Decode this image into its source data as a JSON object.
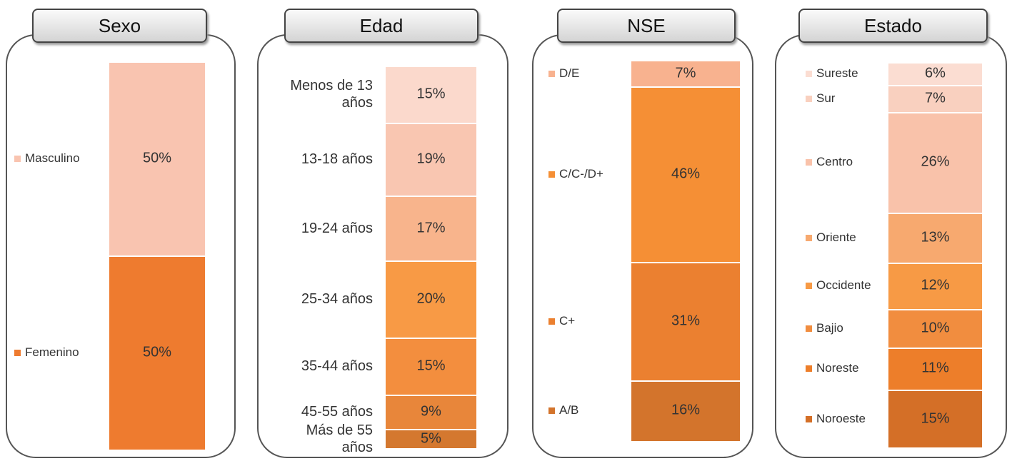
{
  "chart_data": [
    {
      "type": "stacked_bar",
      "title": "Sexo",
      "legend_markers": true,
      "series": [
        {
          "name": "Femenino",
          "color": "#ee7b2f",
          "values": [
            50
          ],
          "value_labels": [
            "50%"
          ]
        },
        {
          "name": "Masculino",
          "color": "#f9c4b0",
          "values": [
            50
          ],
          "value_labels": [
            "50%"
          ]
        }
      ]
    },
    {
      "type": "stacked_bar",
      "title": "Edad",
      "legend_markers": false,
      "series": [
        {
          "name": "Más de 55 años",
          "color": "#d4782f",
          "values": [
            5
          ],
          "value_labels": [
            "5%"
          ]
        },
        {
          "name": "45-55 años",
          "color": "#e8863a",
          "values": [
            9
          ],
          "value_labels": [
            "9%"
          ]
        },
        {
          "name": "35-44 años",
          "color": "#f38e3e",
          "values": [
            15
          ],
          "value_labels": [
            "15%"
          ]
        },
        {
          "name": "25-34 años",
          "color": "#f89a45",
          "values": [
            20
          ],
          "value_labels": [
            "20%"
          ]
        },
        {
          "name": "19-24 años",
          "color": "#f8b48c",
          "values": [
            17
          ],
          "value_labels": [
            "17%"
          ]
        },
        {
          "name": "13-18 años",
          "color": "#f9c6b1",
          "values": [
            19
          ],
          "value_labels": [
            "19%"
          ]
        },
        {
          "name": "Menos de 13 años",
          "color": "#fbd9cc",
          "values": [
            15
          ],
          "value_labels": [
            "15%"
          ]
        }
      ]
    },
    {
      "type": "stacked_bar",
      "title": "NSE",
      "legend_markers": true,
      "series": [
        {
          "name": "A/B",
          "color": "#d3742c",
          "values": [
            16
          ],
          "value_labels": [
            "16%"
          ]
        },
        {
          "name": "C+",
          "color": "#eb8030",
          "values": [
            31
          ],
          "value_labels": [
            "31%"
          ]
        },
        {
          "name": "C/C-/D+",
          "color": "#f58f35",
          "values": [
            46
          ],
          "value_labels": [
            "46%"
          ]
        },
        {
          "name": "D/E",
          "color": "#f8b28f",
          "values": [
            7
          ],
          "value_labels": [
            "7%"
          ]
        }
      ]
    },
    {
      "type": "stacked_bar",
      "title": "Estado",
      "legend_markers": true,
      "series": [
        {
          "name": "Noroeste",
          "color": "#d46f27",
          "values": [
            15
          ],
          "value_labels": [
            "15%"
          ]
        },
        {
          "name": "Noreste",
          "color": "#ed7e2a",
          "values": [
            11
          ],
          "value_labels": [
            "11%"
          ]
        },
        {
          "name": "Bajio",
          "color": "#f18d3f",
          "values": [
            10
          ],
          "value_labels": [
            "10%"
          ]
        },
        {
          "name": "Occidente",
          "color": "#f79a45",
          "values": [
            12
          ],
          "value_labels": [
            "12%"
          ]
        },
        {
          "name": "Oriente",
          "color": "#f7a96f",
          "values": [
            13
          ],
          "value_labels": [
            "13%"
          ]
        },
        {
          "name": "Centro",
          "color": "#f9c2aa",
          "values": [
            26
          ],
          "value_labels": [
            "26%"
          ]
        },
        {
          "name": "Sur",
          "color": "#f9d0bf",
          "values": [
            7
          ],
          "value_labels": [
            "7%"
          ]
        },
        {
          "name": "Sureste",
          "color": "#fbddd2",
          "values": [
            6
          ],
          "value_labels": [
            "6%"
          ]
        }
      ]
    }
  ]
}
